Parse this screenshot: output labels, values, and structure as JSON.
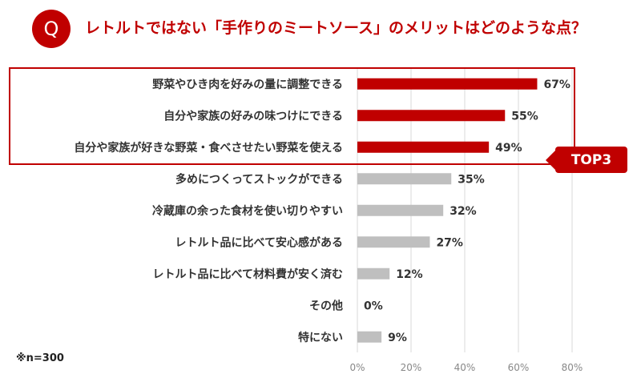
{
  "header": {
    "badge": "Q",
    "question": "レトルトではない「手作りのミートソース」のメリットはどのような点？"
  },
  "highlight": {
    "badge": "TOP3"
  },
  "note": "※n=300",
  "colors": {
    "accent": "#c00000",
    "grey_bar": "#bfbfbf",
    "grid": "#d9d9d9"
  },
  "chart_data": {
    "type": "bar",
    "orientation": "horizontal",
    "categories": [
      "野菜やひき肉を好みの量に調整できる",
      "自分や家族の好みの味つけにできる",
      "自分や家族が好きな野菜・食べさせたい野菜を使える",
      "多めにつくってストックができる",
      "冷蔵庫の余った食材を使い切りやすい",
      "レトルト品に比べて安心感がある",
      "レトルト品に比べて材料費が安く済む",
      "その他",
      "特にない"
    ],
    "values": [
      67,
      55,
      49,
      35,
      32,
      27,
      12,
      0,
      9
    ],
    "value_labels": [
      "67%",
      "55%",
      "49%",
      "35%",
      "32%",
      "27%",
      "12%",
      "0%",
      "9%"
    ],
    "highlighted_count": 3,
    "xlim": [
      0,
      80
    ],
    "xticks": [
      0,
      20,
      40,
      60,
      80
    ],
    "xtick_labels": [
      "0%",
      "20%",
      "40%",
      "60%",
      "80%"
    ],
    "grid": true
  }
}
